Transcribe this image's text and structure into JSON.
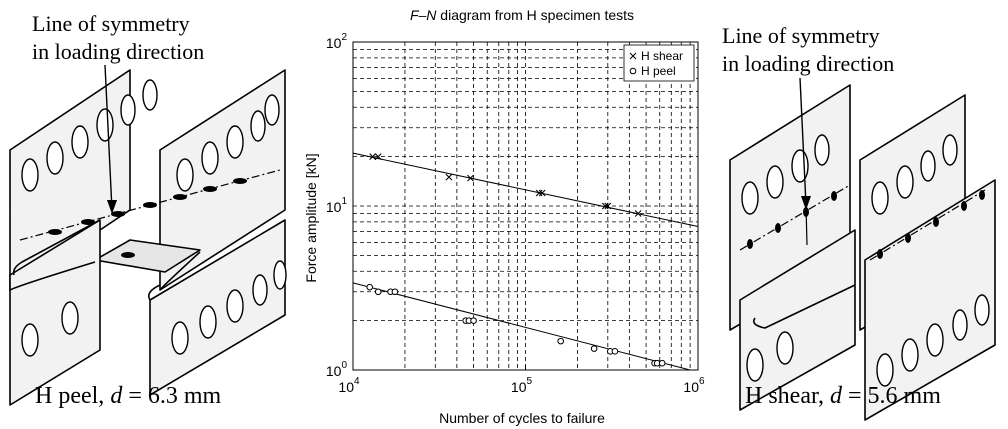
{
  "left_panel": {
    "annotation_line1": "Line of symmetry",
    "annotation_line2": "in loading direction",
    "caption_prefix": "H peel, ",
    "caption_var": "d",
    "caption_suffix": " = 6.3 mm"
  },
  "right_panel": {
    "annotation_line1": "Line of symmetry",
    "annotation_line2": "in loading direction",
    "caption_prefix": "H shear, ",
    "caption_var": "d",
    "caption_suffix": " = 5.6 mm"
  },
  "chart_data": {
    "type": "scatter",
    "title_italic": "F–N",
    "title_rest": " diagram from H specimen tests",
    "xlabel": "Number of cycles to failure",
    "ylabel": "Force amplitude [kN]",
    "x_scale": "log",
    "y_scale": "log",
    "xlim": [
      10000,
      1000000
    ],
    "ylim": [
      1,
      100
    ],
    "x_ticks": [
      {
        "base": "10",
        "exp": "4",
        "value": 10000
      },
      {
        "base": "10",
        "exp": "5",
        "value": 100000
      },
      {
        "base": "10",
        "exp": "6",
        "value": 1000000
      }
    ],
    "y_ticks": [
      {
        "base": "10",
        "exp": "0",
        "value": 1
      },
      {
        "base": "10",
        "exp": "1",
        "value": 10
      },
      {
        "base": "10",
        "exp": "2",
        "value": 100
      }
    ],
    "grid": true,
    "legend_position": "top-right",
    "series": [
      {
        "name": "H shear",
        "marker": "x",
        "points": [
          [
            13000,
            20
          ],
          [
            14000,
            20
          ],
          [
            36000,
            15
          ],
          [
            48000,
            14.8
          ],
          [
            120000,
            12
          ],
          [
            125000,
            12
          ],
          [
            290000,
            10
          ],
          [
            300000,
            10
          ],
          [
            450000,
            9
          ]
        ],
        "fit": [
          [
            10000,
            21
          ],
          [
            1000000,
            7.5
          ]
        ]
      },
      {
        "name": "H peel",
        "marker": "o",
        "points": [
          [
            12500,
            3.2
          ],
          [
            14000,
            3.0
          ],
          [
            16500,
            3.0
          ],
          [
            17500,
            3.0
          ],
          [
            45000,
            2.0
          ],
          [
            47000,
            2.0
          ],
          [
            50000,
            2.0
          ],
          [
            160000,
            1.5
          ],
          [
            250000,
            1.35
          ],
          [
            310000,
            1.3
          ],
          [
            330000,
            1.3
          ],
          [
            560000,
            1.1
          ],
          [
            580000,
            1.1
          ],
          [
            620000,
            1.1
          ]
        ],
        "fit": [
          [
            10000,
            3.4
          ],
          [
            900000,
            1.0
          ]
        ]
      }
    ]
  }
}
